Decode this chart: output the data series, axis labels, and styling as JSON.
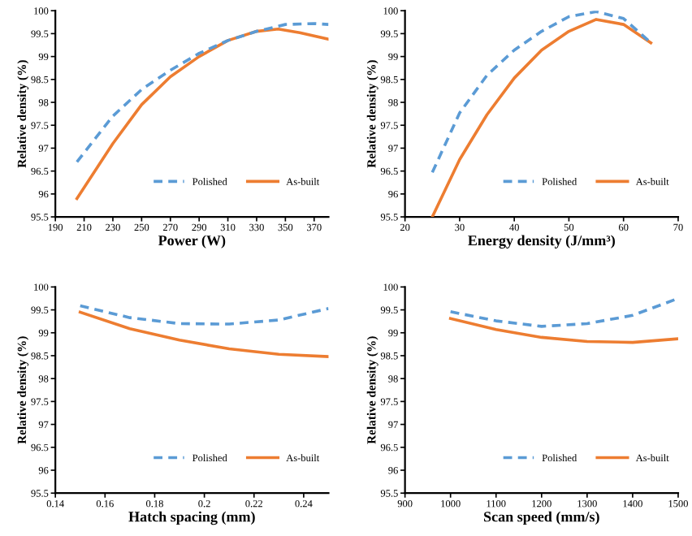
{
  "chart_data": [
    {
      "type": "line",
      "xlabel": "Power (W)",
      "ylabel": "Relative density (%)",
      "xlim": [
        190,
        380
      ],
      "xticks": [
        190,
        210,
        230,
        250,
        270,
        290,
        310,
        330,
        350,
        370
      ],
      "ylim": [
        95.5,
        100
      ],
      "yticks": [
        95.5,
        96,
        96.5,
        97,
        97.5,
        98,
        98.5,
        99,
        99.5,
        100
      ],
      "legend": "lower right",
      "grid": false,
      "series": [
        {
          "name": "Polished",
          "color": "#5b9bd5",
          "line_style": "dashed",
          "x": [
            205,
            230,
            250,
            270,
            290,
            310,
            330,
            350,
            370,
            380
          ],
          "values": [
            96.7,
            97.7,
            98.28,
            98.7,
            99.07,
            99.35,
            99.55,
            99.7,
            99.72,
            99.7
          ]
        },
        {
          "name": "As-built",
          "color": "#ed7d31",
          "line_style": "solid",
          "x": [
            205,
            230,
            250,
            270,
            290,
            310,
            330,
            345,
            360,
            380
          ],
          "values": [
            95.9,
            97.1,
            97.95,
            98.56,
            99.0,
            99.35,
            99.55,
            99.6,
            99.52,
            99.38
          ]
        }
      ]
    },
    {
      "type": "line",
      "xlabel": "Energy density (J/mm³)",
      "ylabel": "Relative density (%)",
      "xlim": [
        20,
        70
      ],
      "xticks": [
        20,
        30,
        40,
        50,
        60,
        70
      ],
      "ylim": [
        95.5,
        100
      ],
      "yticks": [
        95.5,
        96,
        96.5,
        97,
        97.5,
        98,
        98.5,
        99,
        99.5,
        100
      ],
      "legend": "lower right",
      "grid": false,
      "series": [
        {
          "name": "Polished",
          "color": "#5b9bd5",
          "line_style": "dashed",
          "x": [
            25,
            30,
            35,
            40,
            45,
            50,
            55,
            60,
            65
          ],
          "values": [
            96.47,
            97.77,
            98.59,
            99.14,
            99.55,
            99.87,
            99.98,
            99.83,
            99.3
          ]
        },
        {
          "name": "As-built",
          "color": "#ed7d31",
          "line_style": "solid",
          "x": [
            25,
            30,
            35,
            40,
            45,
            50,
            55,
            60,
            65
          ],
          "values": [
            95.5,
            96.75,
            97.73,
            98.53,
            99.14,
            99.55,
            99.81,
            99.7,
            99.3
          ]
        }
      ]
    },
    {
      "type": "line",
      "xlabel": "Hatch spacing (mm)",
      "ylabel": "Relative density (%)",
      "xlim": [
        0.14,
        0.25
      ],
      "xticks": [
        0.14,
        0.16,
        0.18,
        0.2,
        0.22,
        0.24
      ],
      "ylim": [
        95.5,
        100
      ],
      "yticks": [
        95.5,
        96,
        96.5,
        97,
        97.5,
        98,
        98.5,
        99,
        99.5,
        100
      ],
      "legend": "lower right",
      "grid": false,
      "series": [
        {
          "name": "Polished",
          "color": "#5b9bd5",
          "line_style": "dashed",
          "x": [
            0.15,
            0.17,
            0.19,
            0.21,
            0.23,
            0.25
          ],
          "values": [
            99.59,
            99.33,
            99.2,
            99.19,
            99.28,
            99.53
          ]
        },
        {
          "name": "As-built",
          "color": "#ed7d31",
          "line_style": "solid",
          "x": [
            0.15,
            0.17,
            0.19,
            0.21,
            0.23,
            0.25
          ],
          "values": [
            99.45,
            99.09,
            98.84,
            98.65,
            98.53,
            98.48
          ]
        }
      ]
    },
    {
      "type": "line",
      "xlabel": "Scan speed (mm/s)",
      "ylabel": "Relative density (%)",
      "xlim": [
        900,
        1500
      ],
      "xticks": [
        900,
        1000,
        1100,
        1200,
        1300,
        1400,
        1500
      ],
      "ylim": [
        95.5,
        100
      ],
      "yticks": [
        95.5,
        96,
        96.5,
        97,
        97.5,
        98,
        98.5,
        99,
        99.5,
        100
      ],
      "legend": "lower right",
      "grid": false,
      "series": [
        {
          "name": "Polished",
          "color": "#5b9bd5",
          "line_style": "dashed",
          "x": [
            1000,
            1100,
            1200,
            1300,
            1400,
            1500
          ],
          "values": [
            99.46,
            99.26,
            99.14,
            99.2,
            99.38,
            99.75
          ]
        },
        {
          "name": "As-built",
          "color": "#ed7d31",
          "line_style": "solid",
          "x": [
            1000,
            1100,
            1200,
            1300,
            1400,
            1500
          ],
          "values": [
            99.31,
            99.07,
            98.9,
            98.81,
            98.79,
            98.87
          ]
        }
      ]
    }
  ]
}
